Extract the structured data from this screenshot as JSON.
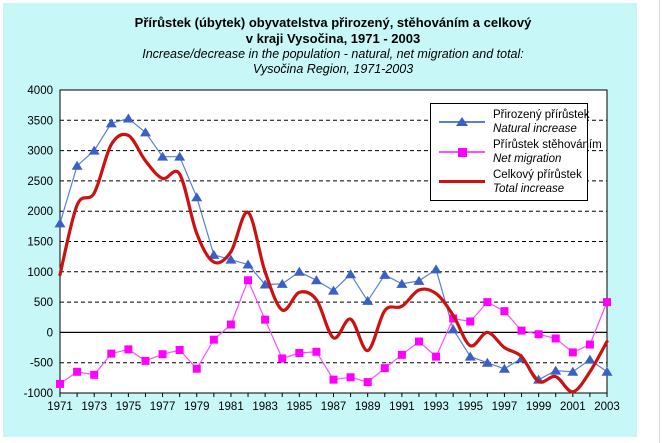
{
  "chart_data": {
    "type": "line",
    "title_cs_line1": "Přírůstek (úbytek) obyvatelstva přirozený, stěhováním a celkový",
    "title_cs_line2": "v kraji Vysočina, 1971 - 2003",
    "subtitle_en_line1": "Increase/decrease in the population - natural, net migration and total:",
    "subtitle_en_line2": "Vysočina Region, 1971-2003",
    "background_color": "#c7f7f7",
    "plot_background": "#ffffff",
    "axis_color": "#000000",
    "x": [
      1971,
      1972,
      1973,
      1974,
      1975,
      1976,
      1977,
      1978,
      1979,
      1980,
      1981,
      1982,
      1983,
      1984,
      1985,
      1986,
      1987,
      1988,
      1989,
      1990,
      1991,
      1992,
      1993,
      1994,
      1995,
      1996,
      1997,
      1998,
      1999,
      2000,
      2001,
      2002,
      2003
    ],
    "xtick_labels": [
      "1971",
      "1973",
      "1975",
      "1977",
      "1979",
      "1981",
      "1983",
      "1985",
      "1987",
      "1989",
      "1991",
      "1993",
      "1995",
      "1997",
      "1999",
      "2001",
      "2003"
    ],
    "ylim": [
      -1000,
      4000
    ],
    "ytick_step": 500,
    "ytick_labels": [
      "-1000",
      "-500",
      "0",
      "500",
      "1000",
      "1500",
      "2000",
      "2500",
      "3000",
      "3500",
      "4000"
    ],
    "grid": "horizontal-dashed",
    "zero_line": true,
    "legend_position": "top-right",
    "series": [
      {
        "id": "natural",
        "label_cs": "Přirozený přírůstek",
        "label_en": "Natural increase",
        "marker": "triangle",
        "line_color": "#5b7fd4",
        "marker_color": "#3a5fc8",
        "line_width": 1.2,
        "smooth": false,
        "values": [
          1800,
          2750,
          3000,
          3450,
          3530,
          3300,
          2900,
          2900,
          2230,
          1280,
          1200,
          1120,
          790,
          800,
          1000,
          860,
          690,
          960,
          520,
          950,
          800,
          850,
          1040,
          50,
          -400,
          -500,
          -600,
          -430,
          -780,
          -630,
          -650,
          -450,
          -650
        ]
      },
      {
        "id": "migration",
        "label_cs": "Přírůstek stěhováním",
        "label_en": "Net migration",
        "marker": "square",
        "line_color": "#ff4dff",
        "marker_color": "#ff00ff",
        "line_width": 1.2,
        "smooth": false,
        "values": [
          -850,
          -650,
          -700,
          -350,
          -280,
          -470,
          -360,
          -290,
          -600,
          -120,
          130,
          860,
          210,
          -430,
          -340,
          -320,
          -780,
          -740,
          -820,
          -590,
          -370,
          -150,
          -400,
          230,
          180,
          500,
          350,
          30,
          -30,
          -100,
          -330,
          -200,
          500
        ]
      },
      {
        "id": "total",
        "label_cs": "Celkový přírůstek",
        "label_en": "Total increase",
        "marker": "none",
        "line_color": "#cc1111",
        "marker_color": "#cc1111",
        "line_width": 3.2,
        "smooth": true,
        "values": [
          950,
          2100,
          2300,
          3100,
          3250,
          2830,
          2540,
          2610,
          1630,
          1160,
          1330,
          1980,
          1000,
          370,
          660,
          540,
          -90,
          220,
          -300,
          360,
          430,
          700,
          640,
          280,
          -220,
          0,
          -250,
          -400,
          -810,
          -730,
          -980,
          -650,
          -150
        ]
      }
    ]
  }
}
